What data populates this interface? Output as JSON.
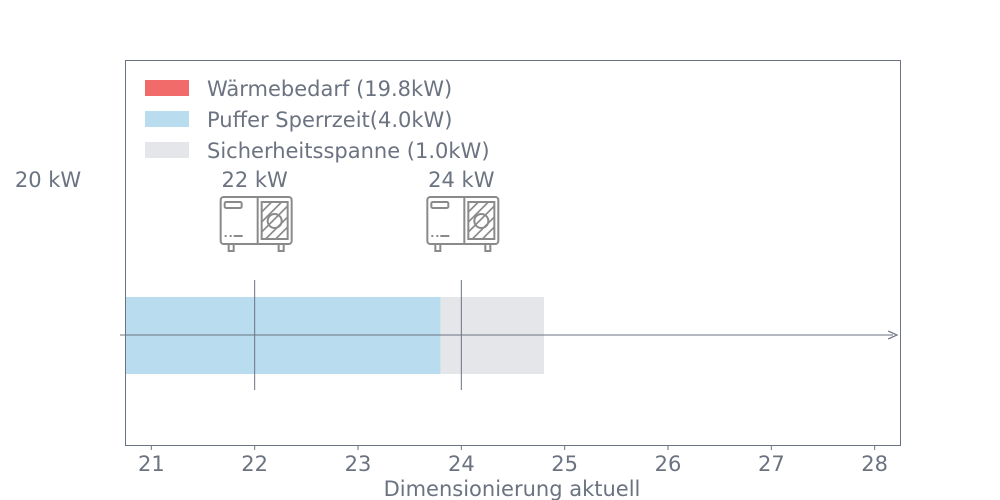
{
  "chart_data": {
    "type": "bar",
    "orientation": "horizontal",
    "xlabel": "Dimensionierung aktuell",
    "xlim": [
      20.75,
      28.25
    ],
    "xticks": [
      "21",
      "22",
      "23",
      "24",
      "25",
      "26",
      "27",
      "28"
    ],
    "xtick_values": [
      21,
      22,
      23,
      24,
      25,
      26,
      27,
      28
    ],
    "grid": false,
    "legend_placement": "top-left",
    "series": [
      {
        "name": "Wärmebedarf (19.8kW)",
        "start": 0,
        "end": 19.8,
        "color": "#f26b6b"
      },
      {
        "name": "Puffer Sperrzeit(4.0kW)",
        "start": 19.8,
        "end": 23.8,
        "color": "#b9dcee"
      },
      {
        "name": "Sicherheitsspanne (1.0kW)",
        "start": 23.8,
        "end": 24.8,
        "color": "#e5e6ea"
      }
    ],
    "markers": [
      {
        "value": 22,
        "label": "22 kW",
        "icon": "heat-pump-icon"
      },
      {
        "value": 24,
        "label": "24 kW",
        "icon": "heat-pump-icon"
      }
    ],
    "outside_label": {
      "value": 20,
      "label": "20 kW"
    }
  },
  "colors": {
    "text": "#6b7280",
    "axis": "#6b7280"
  }
}
